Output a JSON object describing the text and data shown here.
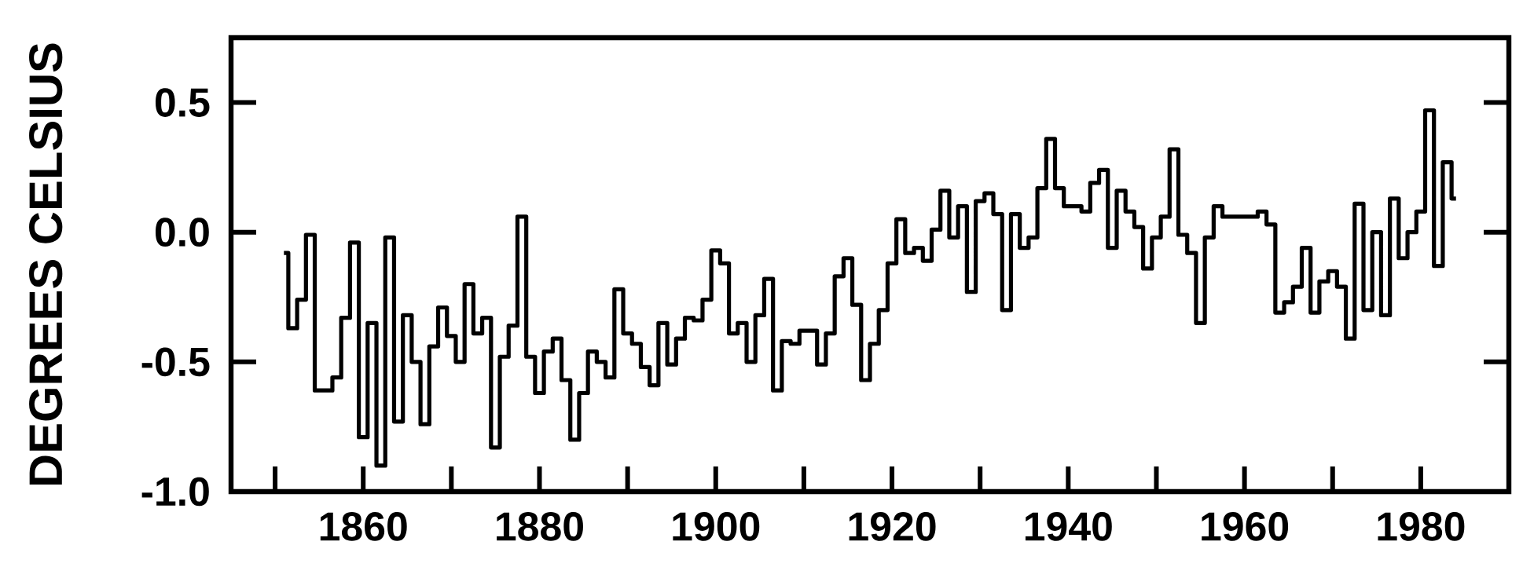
{
  "chart_data": {
    "type": "step",
    "ylabel": "DEGREES CELSIUS",
    "color": "#000000",
    "xlim": [
      1845,
      1990
    ],
    "ylim": [
      -1.0,
      0.75
    ],
    "xticks": [
      {
        "value": 1850,
        "label": null
      },
      {
        "value": 1860,
        "label": "1860"
      },
      {
        "value": 1870,
        "label": null
      },
      {
        "value": 1880,
        "label": "1880"
      },
      {
        "value": 1890,
        "label": null
      },
      {
        "value": 1900,
        "label": "1900"
      },
      {
        "value": 1910,
        "label": null
      },
      {
        "value": 1920,
        "label": "1920"
      },
      {
        "value": 1930,
        "label": null
      },
      {
        "value": 1940,
        "label": "1940"
      },
      {
        "value": 1950,
        "label": null
      },
      {
        "value": 1960,
        "label": "1960"
      },
      {
        "value": 1970,
        "label": null
      },
      {
        "value": 1980,
        "label": "1980"
      }
    ],
    "yticks": [
      {
        "value": 0.5,
        "label": "0.5"
      },
      {
        "value": 0.0,
        "label": "0.0"
      },
      {
        "value": -0.5,
        "label": "-0.5"
      },
      {
        "value": -1.0,
        "label": "-1.0"
      }
    ],
    "x": [
      1851,
      1852,
      1853,
      1854,
      1855,
      1856,
      1857,
      1858,
      1859,
      1860,
      1861,
      1862,
      1863,
      1864,
      1865,
      1866,
      1867,
      1868,
      1869,
      1870,
      1871,
      1872,
      1873,
      1874,
      1875,
      1876,
      1877,
      1878,
      1879,
      1880,
      1881,
      1882,
      1883,
      1884,
      1885,
      1886,
      1887,
      1888,
      1889,
      1890,
      1891,
      1892,
      1893,
      1894,
      1895,
      1896,
      1897,
      1898,
      1899,
      1900,
      1901,
      1902,
      1903,
      1904,
      1905,
      1906,
      1907,
      1908,
      1909,
      1910,
      1911,
      1912,
      1913,
      1914,
      1915,
      1916,
      1917,
      1918,
      1919,
      1920,
      1921,
      1922,
      1923,
      1924,
      1925,
      1926,
      1927,
      1928,
      1929,
      1930,
      1931,
      1932,
      1933,
      1934,
      1935,
      1936,
      1937,
      1938,
      1939,
      1940,
      1941,
      1942,
      1943,
      1944,
      1945,
      1946,
      1947,
      1948,
      1949,
      1950,
      1951,
      1952,
      1953,
      1954,
      1955,
      1956,
      1957,
      1958,
      1959,
      1960,
      1961,
      1962,
      1963,
      1964,
      1965,
      1966,
      1967,
      1968,
      1969,
      1970,
      1971,
      1972,
      1973,
      1974,
      1975,
      1976,
      1977,
      1978,
      1979,
      1980,
      1981,
      1982,
      1983,
      1984
    ],
    "values": [
      -0.08,
      -0.37,
      -0.26,
      -0.01,
      -0.61,
      -0.61,
      -0.56,
      -0.33,
      -0.04,
      -0.79,
      -0.35,
      -0.9,
      -0.02,
      -0.73,
      -0.32,
      -0.5,
      -0.74,
      -0.44,
      -0.29,
      -0.4,
      -0.5,
      -0.2,
      -0.39,
      -0.33,
      -0.83,
      -0.48,
      -0.36,
      0.06,
      -0.48,
      -0.62,
      -0.46,
      -0.41,
      -0.57,
      -0.8,
      -0.62,
      -0.46,
      -0.5,
      -0.56,
      -0.22,
      -0.39,
      -0.43,
      -0.52,
      -0.59,
      -0.35,
      -0.51,
      -0.41,
      -0.33,
      -0.34,
      -0.26,
      -0.07,
      -0.12,
      -0.39,
      -0.35,
      -0.5,
      -0.32,
      -0.18,
      -0.61,
      -0.42,
      -0.43,
      -0.38,
      -0.38,
      -0.51,
      -0.39,
      -0.17,
      -0.1,
      -0.28,
      -0.57,
      -0.43,
      -0.3,
      -0.12,
      0.05,
      -0.08,
      -0.06,
      -0.11,
      0.01,
      0.16,
      -0.02,
      0.1,
      -0.23,
      0.12,
      0.15,
      0.07,
      -0.3,
      0.07,
      -0.06,
      -0.02,
      0.17,
      0.36,
      0.17,
      0.1,
      0.1,
      0.08,
      0.19,
      0.24,
      -0.06,
      0.16,
      0.08,
      0.02,
      -0.14,
      -0.02,
      0.06,
      0.32,
      -0.01,
      -0.08,
      -0.35,
      -0.02,
      0.1,
      0.06,
      0.06,
      0.06,
      0.06,
      0.08,
      0.03,
      -0.31,
      -0.27,
      -0.21,
      -0.06,
      -0.31,
      -0.19,
      -0.15,
      -0.21,
      -0.41,
      0.11,
      -0.3,
      0.0,
      -0.32,
      0.13,
      -0.1,
      0.0,
      0.08,
      0.47,
      -0.13,
      0.27,
      0.13
    ]
  }
}
